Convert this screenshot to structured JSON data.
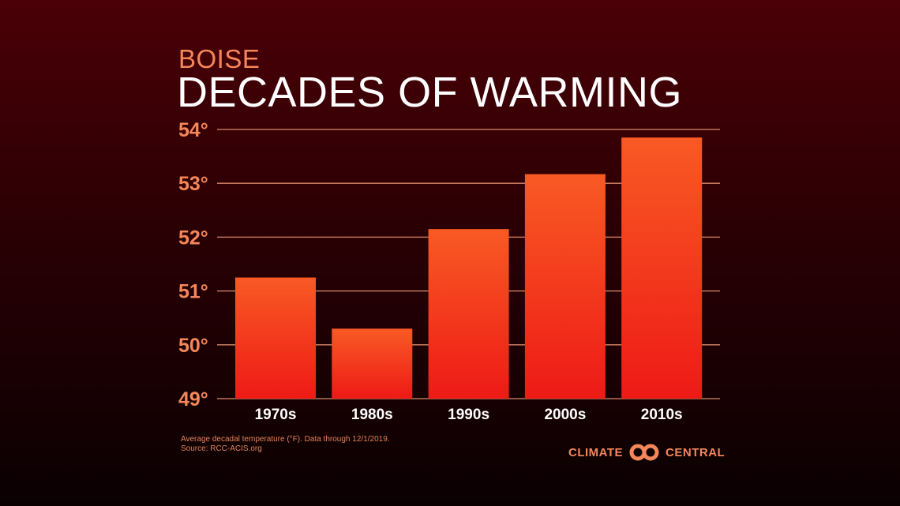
{
  "subtitle": "BOISE",
  "title": "DECADES OF WARMING",
  "footer": {
    "note": "Average decadal temperature (°F). Data through 12/1/2019.",
    "source": "Source: RCC-ACIS.org"
  },
  "logo": {
    "left": "CLIMATE",
    "right": "CENTRAL"
  },
  "colors": {
    "bar_top": "#f85a24",
    "bar_bottom": "#ee1a16",
    "grid": "#d98a6a",
    "tick": "#f4875a"
  },
  "chart_data": {
    "type": "bar",
    "title": "DECADES OF WARMING",
    "categories": [
      "1970s",
      "1980s",
      "1990s",
      "2000s",
      "2010s"
    ],
    "values": [
      51.25,
      50.3,
      52.15,
      53.17,
      53.85
    ],
    "ylim": [
      49,
      54
    ],
    "yticks": [
      49,
      50,
      51,
      52,
      53,
      54
    ],
    "ytick_labels": [
      "49°",
      "50°",
      "51°",
      "52°",
      "53°",
      "54°"
    ],
    "grid": true
  }
}
